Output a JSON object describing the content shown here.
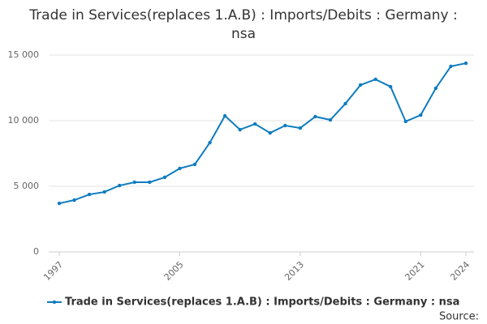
{
  "chart_data": {
    "type": "line",
    "title": "Trade in Services(replaces 1.A.B) : Imports/Debits : Germany : nsa",
    "x": [
      1997,
      1998,
      1999,
      2000,
      2001,
      2002,
      2003,
      2004,
      2005,
      2006,
      2007,
      2008,
      2009,
      2010,
      2011,
      2012,
      2013,
      2014,
      2015,
      2016,
      2017,
      2018,
      2019,
      2020,
      2021,
      2022,
      2023,
      2024
    ],
    "series": [
      {
        "name": "Trade in Services(replaces 1.A.B) : Imports/Debits : Germany : nsa",
        "color": "#0f7cbf",
        "values": [
          3700,
          3950,
          4380,
          4570,
          5060,
          5310,
          5310,
          5680,
          6360,
          6670,
          8330,
          10370,
          9320,
          9750,
          9070,
          9630,
          9440,
          10310,
          10060,
          11300,
          12720,
          13150,
          12590,
          9940,
          10430,
          12470,
          14140,
          14380
        ]
      }
    ],
    "xlim": [
      1997,
      2024
    ],
    "xticks": [
      1997,
      2005,
      2013,
      2021,
      2024
    ],
    "ylim": [
      0,
      15000
    ],
    "yticks": [
      0,
      {
        "value": 5000,
        "label": "5 000"
      },
      {
        "value": 10000,
        "label": "10 000"
      },
      {
        "value": 15000,
        "label": "15 000"
      }
    ],
    "grid": true,
    "legend": "bottom",
    "source": "Source:"
  }
}
